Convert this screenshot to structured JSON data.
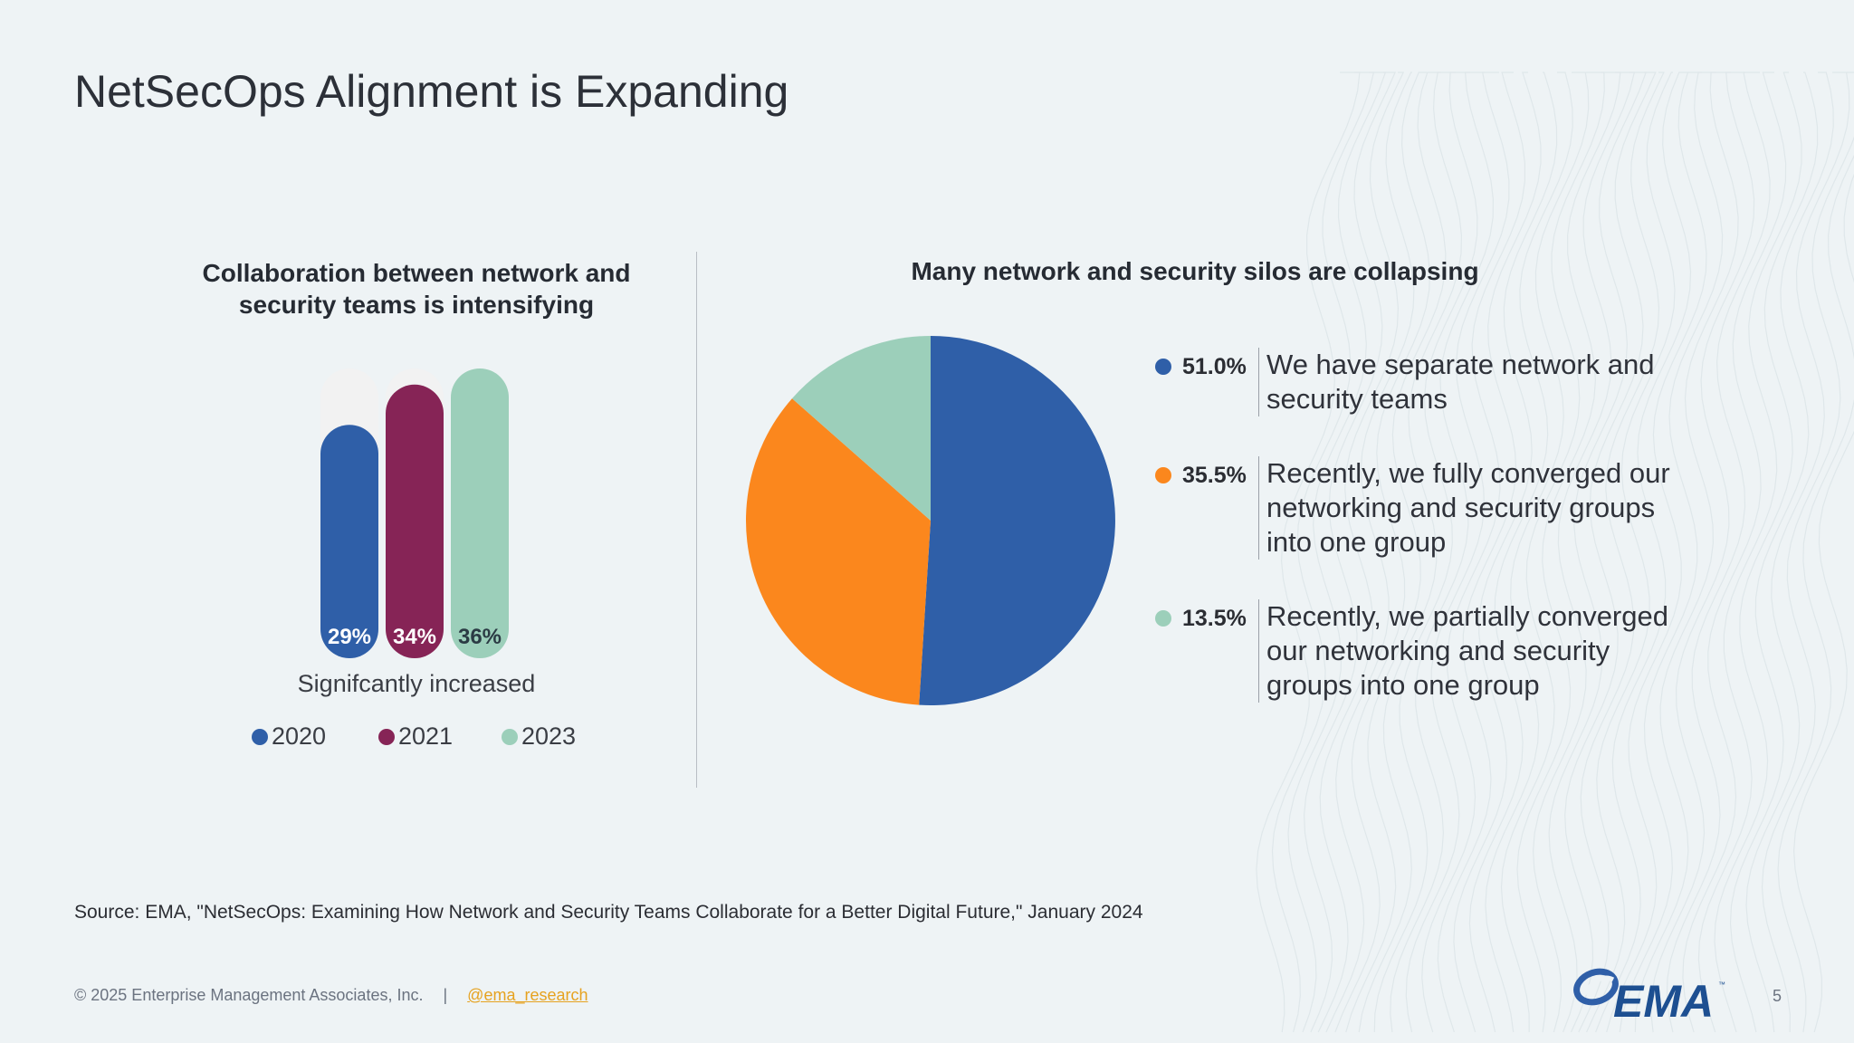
{
  "slide": {
    "title": "NetSecOps Alignment is Expanding",
    "page_number": "5"
  },
  "bar_section": {
    "heading_line1": "Collaboration between network and",
    "heading_line2": "security teams is intensifying",
    "caption": "Signifcantly increased"
  },
  "pie_section": {
    "heading": "Many network and security silos are collapsing",
    "items": [
      {
        "pct": "51.0%",
        "text": "We have separate network and security teams"
      },
      {
        "pct": "35.5%",
        "text": "Recently, we fully converged our networking and security groups into one group"
      },
      {
        "pct": "13.5%",
        "text": "Recently, we partially converged our networking and security groups into one group"
      }
    ]
  },
  "source": "Source: EMA, \"NetSecOps: Examining How Network and Security Teams Collaborate for a Better Digital Future,\" January 2024",
  "footer": {
    "copyright": "© 2025 Enterprise Management Associates, Inc.",
    "separator": "|",
    "handle": "@ema_research"
  },
  "logo": {
    "text": "EMA",
    "tm": "™"
  },
  "colors": {
    "blue": "#2f5fa8",
    "maroon": "#862456",
    "mint": "#9ccfba",
    "orange": "#fb871d",
    "track": "#f2f2f2"
  },
  "chart_data": [
    {
      "type": "bar",
      "title": "Collaboration between network and security teams is intensifying",
      "categories": [
        "Signifcantly increased"
      ],
      "series": [
        {
          "name": "2020",
          "values": [
            29
          ],
          "label": "29%",
          "color": "#2f5fa8"
        },
        {
          "name": "2021",
          "values": [
            34
          ],
          "label": "34%",
          "color": "#862456"
        },
        {
          "name": "2023",
          "values": [
            36
          ],
          "label": "36%",
          "color": "#9ccfba"
        }
      ],
      "ylim": [
        0,
        36
      ],
      "grid": false,
      "legend": "bottom"
    },
    {
      "type": "pie",
      "title": "Many network and security silos are collapsing",
      "slices": [
        {
          "label": "We have separate network and security teams",
          "value": 51.0,
          "color": "#2f5fa8"
        },
        {
          "label": "Recently, we fully converged our networking and security groups into one group",
          "value": 35.5,
          "color": "#fb871d"
        },
        {
          "label": "Recently, we partially converged our networking and security groups into one group",
          "value": 13.5,
          "color": "#9ccfba"
        }
      ],
      "legend": "right"
    }
  ]
}
